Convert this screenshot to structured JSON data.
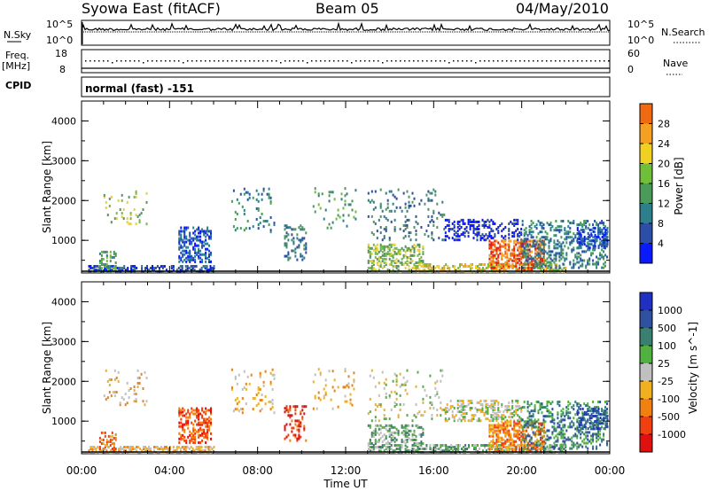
{
  "header": {
    "title": "Syowa East (fitACF)",
    "beam": "Beam 05",
    "date": "04/May/2010"
  },
  "top_panels": {
    "nsky_label": "N.Sky",
    "nsky_tick_top": "10^5",
    "nsky_tick_bottom": "10^0",
    "nsearch_label": "N.Search",
    "nsearch_tick_top": "10^5",
    "nsearch_tick_bottom": "10^0",
    "freq_label_1": "Freq.",
    "freq_label_2": "[MHz]",
    "freq_tick_top": "18",
    "freq_tick_bottom": "8",
    "nave_label": "Nave",
    "nave_tick_top": "60",
    "nave_tick_bottom": "0",
    "cpid_label": "CPID",
    "cpid_value": "normal (fast) -151"
  },
  "colors": {
    "power_scale": [
      "#0a1aff",
      "#2b4fa8",
      "#2e7f8c",
      "#4a9a5a",
      "#6fbf3a",
      "#f0d020",
      "#f5a020",
      "#f06a10",
      "#e02010"
    ],
    "velocity_scale": [
      "#2030c0",
      "#3050a0",
      "#3a8070",
      "#50b040",
      "#c0c0c0",
      "#f0b020",
      "#f08010",
      "#f04010",
      "#e01010"
    ]
  },
  "chart_data": [
    {
      "type": "heatmap",
      "name": "power",
      "ylabel": "Slant Range [km]",
      "xlabel": "",
      "x_ticks": [
        "00:00",
        "04:00",
        "08:00",
        "12:00",
        "16:00",
        "20:00",
        "00:00"
      ],
      "y_ticks": [
        "1000",
        "2000",
        "3000",
        "4000"
      ],
      "xlim": [
        0,
        24
      ],
      "ylim": [
        180,
        4500
      ],
      "colorbar_label": "Power [dB]",
      "colorbar_ticks": [
        "4",
        "8",
        "12",
        "16",
        "20",
        "24",
        "28"
      ],
      "colorbar_range": [
        0,
        32
      ]
    },
    {
      "type": "heatmap",
      "name": "velocity",
      "ylabel": "Slant Range [km]",
      "xlabel": "Time UT",
      "x_ticks": [
        "00:00",
        "04:00",
        "08:00",
        "12:00",
        "16:00",
        "20:00",
        "00:00"
      ],
      "y_ticks": [
        "1000",
        "2000",
        "3000",
        "4000"
      ],
      "xlim": [
        0,
        24
      ],
      "ylim": [
        180,
        4500
      ],
      "colorbar_label": "Velocity [m s^-1]",
      "colorbar_ticks": [
        "1000",
        "500",
        "100",
        "25",
        "-25",
        "-100",
        "-500",
        "-1000"
      ]
    }
  ]
}
